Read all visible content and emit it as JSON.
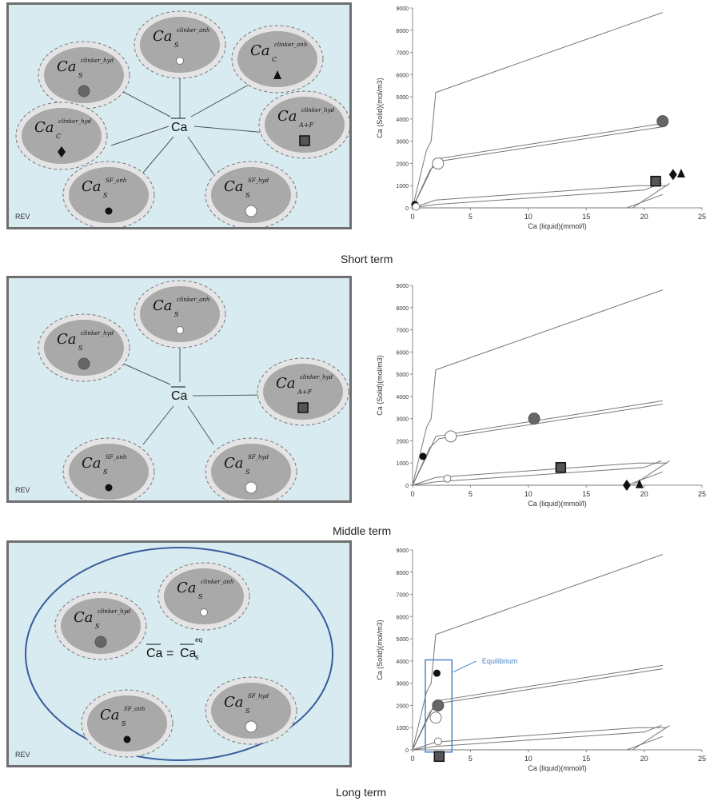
{
  "phases": {
    "clinker_anh": {
      "base": "Ca",
      "sub": "S",
      "sup": "clinker_anh"
    },
    "clinker_hyd": {
      "base": "Ca",
      "sub": "S",
      "sup": "clinker_hyd"
    },
    "c_anh": {
      "base": "Ca",
      "sub": "C",
      "sup": "clinker_anh"
    },
    "c_hyd": {
      "base": "Ca",
      "sub": "C",
      "sup": "clinker_hyd"
    },
    "afp_hyd": {
      "base": "Ca",
      "sub": "A+F",
      "sup": "clinker_hyd"
    },
    "sf_anh": {
      "base": "Ca",
      "sub": "S",
      "sup": "SF_anh"
    },
    "sf_hyd": {
      "base": "Ca",
      "sub": "S",
      "sup": "SF_hyd"
    }
  },
  "center_label": "Ca",
  "equation": {
    "left": "Ca",
    "eq": "=",
    "right": "Ca",
    "right_sub": "s",
    "right_sup": "eq"
  },
  "rev_label": "REV",
  "captions": {
    "short": "Short term",
    "middle": "Middle term",
    "long": "Long term"
  },
  "equilibrium_label": "Equilibrium",
  "colors": {
    "panel_bg": "#d7ebf1",
    "ellipse_fill": "#a9a9a9",
    "ellipse_halo": "#e4e4e4",
    "equilibrium": "#4a86c8"
  },
  "chart_data": [
    {
      "type": "line",
      "xlabel": "Ca (liquid)(mmol/l)",
      "ylabel": "Ca (Solid)(mol/m3)",
      "xlim": [
        0,
        25
      ],
      "ylim": [
        0,
        9000
      ],
      "xticks": [
        0,
        5,
        10,
        15,
        20,
        25
      ],
      "yticks": [
        0,
        1000,
        2000,
        3000,
        4000,
        5000,
        6000,
        7000,
        8000,
        9000
      ],
      "markers": [
        {
          "shape": "circle-gray",
          "x": 21.6,
          "y": 3900
        },
        {
          "shape": "circle-white",
          "x": 2.2,
          "y": 2000
        },
        {
          "shape": "square",
          "x": 21.0,
          "y": 1200
        },
        {
          "shape": "diamond",
          "x": 22.5,
          "y": 1500
        },
        {
          "shape": "triangle",
          "x": 23.2,
          "y": 1550
        },
        {
          "shape": "circle-black",
          "x": 0.2,
          "y": 150
        },
        {
          "shape": "circle-small-white",
          "x": 0.3,
          "y": 50
        }
      ]
    },
    {
      "type": "line",
      "xlabel": "Ca (liquid)(mmol/l)",
      "ylabel": "Ca (Solid)(mol/m3)",
      "xlim": [
        0,
        25
      ],
      "ylim": [
        0,
        9000
      ],
      "xticks": [
        0,
        5,
        10,
        15,
        20,
        25
      ],
      "yticks": [
        0,
        1000,
        2000,
        3000,
        4000,
        5000,
        6000,
        7000,
        8000,
        9000
      ],
      "markers": [
        {
          "shape": "circle-black",
          "x": 0.9,
          "y": 1300
        },
        {
          "shape": "circle-white",
          "x": 3.3,
          "y": 2200
        },
        {
          "shape": "circle-gray",
          "x": 10.5,
          "y": 3000
        },
        {
          "shape": "square",
          "x": 12.8,
          "y": 800
        },
        {
          "shape": "circle-small-white",
          "x": 3.0,
          "y": 300
        },
        {
          "shape": "diamond",
          "x": 18.5,
          "y": 0
        },
        {
          "shape": "triangle",
          "x": 19.6,
          "y": 50
        }
      ]
    },
    {
      "type": "line",
      "xlabel": "Ca (liquid)(mmol/l)",
      "ylabel": "Ca (Solid)(mol/m3)",
      "xlim": [
        0,
        25
      ],
      "ylim": [
        0,
        9000
      ],
      "xticks": [
        0,
        5,
        10,
        15,
        20,
        25
      ],
      "yticks": [
        0,
        1000,
        2000,
        3000,
        4000,
        5000,
        6000,
        7000,
        8000,
        9000
      ],
      "markers": [
        {
          "shape": "circle-black",
          "x": 2.1,
          "y": 3450
        },
        {
          "shape": "circle-gray",
          "x": 2.2,
          "y": 2000
        },
        {
          "shape": "circle-white",
          "x": 2.0,
          "y": 1450
        },
        {
          "shape": "circle-small-white",
          "x": 2.2,
          "y": 380
        },
        {
          "shape": "square",
          "x": 2.3,
          "y": -300
        }
      ],
      "annotations": [
        {
          "text": "Equilibrium"
        }
      ]
    }
  ]
}
